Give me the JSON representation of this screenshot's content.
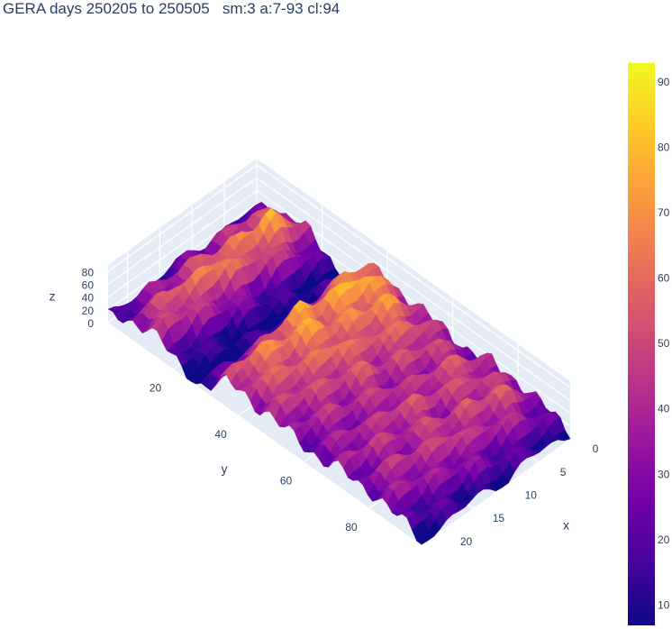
{
  "title": "GERA days 250205 to 250505   sm:3 a:7-93 cl:94",
  "chart_data": {
    "type": "surface",
    "title": "GERA days 250205 to 250505   sm:3 a:7-93 cl:94",
    "colorscale": "plasma",
    "colors": [
      "#0d0887",
      "#46039f",
      "#7201a8",
      "#9c179e",
      "#bd3786",
      "#d8576b",
      "#ed7953",
      "#fb9f3a",
      "#fdca26",
      "#f0f921"
    ],
    "grid": true,
    "x_axis": {
      "label": "x",
      "range": [
        0,
        23
      ],
      "ticks": [
        0,
        5,
        10,
        15,
        20
      ]
    },
    "y_axis": {
      "label": "y",
      "range": [
        0,
        96
      ],
      "ticks": [
        20,
        40,
        60,
        80
      ]
    },
    "z_axis": {
      "label": "z",
      "range": [
        0,
        90
      ],
      "ticks": [
        0,
        20,
        40,
        60,
        80
      ]
    },
    "colorbar": {
      "range": [
        7,
        93
      ],
      "ticks": [
        10,
        20,
        30,
        40,
        50,
        60,
        70,
        80,
        90
      ]
    },
    "row_profile_y": [
      0,
      4,
      8,
      12,
      16,
      20,
      24,
      28,
      32,
      36,
      40,
      44,
      48,
      52,
      56,
      60,
      64,
      68,
      72,
      76,
      80,
      84,
      88,
      92,
      96
    ],
    "row_profile_z": [
      15,
      40,
      55,
      75,
      60,
      30,
      10,
      9,
      35,
      75,
      80,
      70,
      68,
      60,
      55,
      50,
      45,
      50,
      55,
      45,
      55,
      50,
      40,
      25,
      12
    ],
    "column_profile_x": [
      0,
      2,
      4,
      6,
      8,
      10,
      12,
      14,
      16,
      18,
      20,
      22,
      23
    ],
    "column_profile_z": [
      30,
      55,
      80,
      65,
      70,
      50,
      75,
      60,
      50,
      55,
      45,
      35,
      20
    ]
  }
}
